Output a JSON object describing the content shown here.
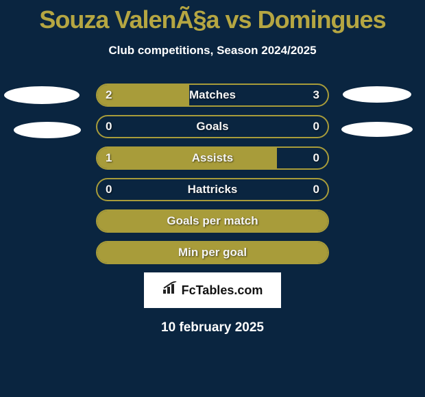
{
  "header": {
    "title": "Souza ValenÃ§a vs Domingues",
    "subtitle": "Club competitions, Season 2024/2025",
    "title_color": "#b5a642",
    "subtitle_color": "#ffffff"
  },
  "colors": {
    "background": "#0a2540",
    "bar_border": "#a89c3a",
    "bar_fill": "#a89c3a",
    "text_light": "#ffffff"
  },
  "stats": [
    {
      "label": "Matches",
      "left_val": "2",
      "right_val": "3",
      "left_pct": 40,
      "right_pct": 0
    },
    {
      "label": "Goals",
      "left_val": "0",
      "right_val": "0",
      "left_pct": 0,
      "right_pct": 0
    },
    {
      "label": "Assists",
      "left_val": "1",
      "right_val": "0",
      "left_pct": 78,
      "right_pct": 0
    },
    {
      "label": "Hattricks",
      "left_val": "0",
      "right_val": "0",
      "left_pct": 0,
      "right_pct": 0
    },
    {
      "label": "Goals per match",
      "left_val": "",
      "right_val": "",
      "left_pct": 100,
      "right_pct": 0
    },
    {
      "label": "Min per goal",
      "left_val": "",
      "right_val": "",
      "left_pct": 100,
      "right_pct": 0
    }
  ],
  "watermark": {
    "text": "FcTables.com"
  },
  "footer": {
    "date": "10 february 2025"
  },
  "ellipses": {
    "color": "#ffffff"
  }
}
